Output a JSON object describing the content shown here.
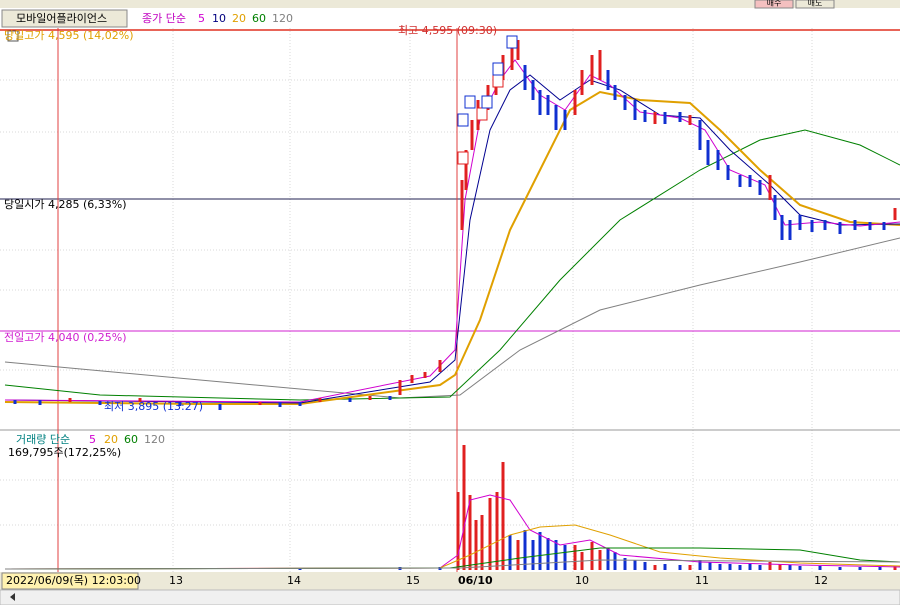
{
  "toolbar": {
    "indicator": "모바일어플라이언스",
    "ma_label": "종가 단순",
    "ma_periods": [
      "5",
      "10",
      "20",
      "60",
      "120"
    ],
    "buttons": [
      "매수",
      "매도"
    ]
  },
  "price_labels": {
    "high": "당일고가 4,595 (14,02%)",
    "peak": "최고 4,595 (09:30)",
    "open": "당일시가 4,285 (6,33%)",
    "prev_high": "전일고가 4,040 (0,25%)",
    "low": "최저 3,895 (13:27)"
  },
  "volume": {
    "label": "거래량 단순",
    "ma_periods": [
      "5",
      "20",
      "60",
      "120"
    ],
    "current": "169,795주(172,25%)"
  },
  "x_axis": {
    "cursor": "2022/06/09(목) 12:03:00",
    "labels": [
      "13",
      "14",
      "15",
      "06/10",
      "10",
      "11",
      "12"
    ]
  }
}
